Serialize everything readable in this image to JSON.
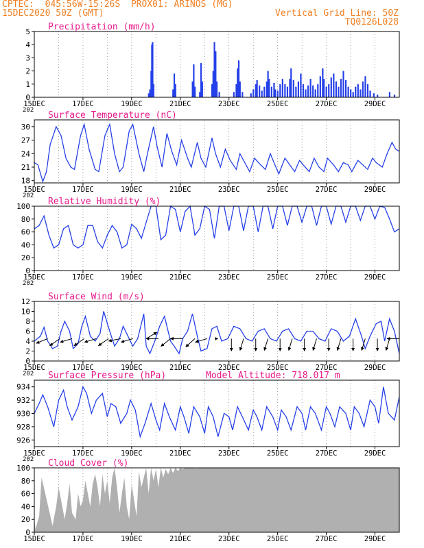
{
  "header": {
    "line1_left": "CPTEC:  045:56W-15:26S  PROX01: ARINOS (MG)",
    "line2_left": "15DEC2020 50Z (GMT)",
    "line2_right": "Vertical Grid Line: 50Z",
    "line3_right": "TQ0126L028",
    "model_altitude": "Model Altitude: 718.017 m"
  },
  "colors": {
    "header": "#f07f22",
    "panel_title": "#e8198b",
    "series": "#2540e8",
    "cloud": "#b0b0b0"
  },
  "x_ticks": [
    "15DEC",
    "17DEC",
    "19DEC",
    "21DEC",
    "23DEC",
    "25DEC",
    "27DEC",
    "29DEC"
  ],
  "x_cut_label": "202",
  "chart_data": [
    {
      "id": "precip",
      "type": "bar",
      "title": "Precipitation (mm/h)",
      "ylim": [
        0,
        5
      ],
      "yticks": [
        "0",
        "1",
        "2",
        "3",
        "4",
        "5"
      ],
      "grid": "vertical dashed",
      "xrange_days": [
        0,
        15
      ],
      "values": [
        [
          4.7,
          0.3
        ],
        [
          4.75,
          0.6
        ],
        [
          4.8,
          2.0
        ],
        [
          4.83,
          4.0
        ],
        [
          4.86,
          4.2
        ],
        [
          4.9,
          1.0
        ],
        [
          5.7,
          0.6
        ],
        [
          5.75,
          1.8
        ],
        [
          5.8,
          1.0
        ],
        [
          6.5,
          1.2
        ],
        [
          6.55,
          2.5
        ],
        [
          6.6,
          0.8
        ],
        [
          6.8,
          0.4
        ],
        [
          6.85,
          2.6
        ],
        [
          6.9,
          1.2
        ],
        [
          7.3,
          1.0
        ],
        [
          7.35,
          2.0
        ],
        [
          7.4,
          4.2
        ],
        [
          7.45,
          3.5
        ],
        [
          7.5,
          1.2
        ],
        [
          7.6,
          0.4
        ],
        [
          8.2,
          0.4
        ],
        [
          8.3,
          1.0
        ],
        [
          8.35,
          2.2
        ],
        [
          8.4,
          2.8
        ],
        [
          8.45,
          1.2
        ],
        [
          8.55,
          0.4
        ],
        [
          8.9,
          0.3
        ],
        [
          9.0,
          0.6
        ],
        [
          9.1,
          1.0
        ],
        [
          9.15,
          1.3
        ],
        [
          9.25,
          0.9
        ],
        [
          9.35,
          0.5
        ],
        [
          9.45,
          0.8
        ],
        [
          9.55,
          1.2
        ],
        [
          9.6,
          2.0
        ],
        [
          9.65,
          1.4
        ],
        [
          9.75,
          0.8
        ],
        [
          9.85,
          1.1
        ],
        [
          9.9,
          0.6
        ],
        [
          10.0,
          0.5
        ],
        [
          10.1,
          1.0
        ],
        [
          10.2,
          1.4
        ],
        [
          10.3,
          1.0
        ],
        [
          10.4,
          0.8
        ],
        [
          10.5,
          1.4
        ],
        [
          10.55,
          2.2
        ],
        [
          10.65,
          1.3
        ],
        [
          10.75,
          0.8
        ],
        [
          10.85,
          1.2
        ],
        [
          10.95,
          1.8
        ],
        [
          11.05,
          1.0
        ],
        [
          11.15,
          0.6
        ],
        [
          11.25,
          0.9
        ],
        [
          11.35,
          1.4
        ],
        [
          11.45,
          0.9
        ],
        [
          11.55,
          0.6
        ],
        [
          11.65,
          1.0
        ],
        [
          11.75,
          1.6
        ],
        [
          11.85,
          2.2
        ],
        [
          11.9,
          1.4
        ],
        [
          12.0,
          0.8
        ],
        [
          12.1,
          1.0
        ],
        [
          12.2,
          1.5
        ],
        [
          12.3,
          1.8
        ],
        [
          12.4,
          1.2
        ],
        [
          12.5,
          0.8
        ],
        [
          12.6,
          1.4
        ],
        [
          12.7,
          2.0
        ],
        [
          12.8,
          1.3
        ],
        [
          12.9,
          0.8
        ],
        [
          13.0,
          0.6
        ],
        [
          13.1,
          0.4
        ],
        [
          13.2,
          0.8
        ],
        [
          13.3,
          1.0
        ],
        [
          13.4,
          0.6
        ],
        [
          13.5,
          1.2
        ],
        [
          13.6,
          1.6
        ],
        [
          13.7,
          1.0
        ],
        [
          13.8,
          0.5
        ],
        [
          13.95,
          0.3
        ],
        [
          14.1,
          0.2
        ],
        [
          14.6,
          0.4
        ],
        [
          14.8,
          0.2
        ]
      ]
    },
    {
      "id": "temp",
      "type": "line",
      "title": "Surface Temperature (nC)",
      "ylim": [
        17.5,
        31.5
      ],
      "yticks": [
        "18",
        "21",
        "24",
        "27",
        "30"
      ],
      "grid": "vertical dashed",
      "xrange_days": [
        0,
        15
      ],
      "x": [
        0,
        0.15,
        0.35,
        0.5,
        0.65,
        0.9,
        1.1,
        1.3,
        1.5,
        1.65,
        1.9,
        2.05,
        2.25,
        2.5,
        2.65,
        2.9,
        3.1,
        3.3,
        3.5,
        3.65,
        3.9,
        4.05,
        4.3,
        4.5,
        4.65,
        4.9,
        5.05,
        5.25,
        5.45,
        5.65,
        5.85,
        6.05,
        6.3,
        6.45,
        6.7,
        6.85,
        7.05,
        7.3,
        7.45,
        7.65,
        7.85,
        8.05,
        8.3,
        8.45,
        8.65,
        8.85,
        9.05,
        9.3,
        9.5,
        9.7,
        9.85,
        10.05,
        10.3,
        10.5,
        10.7,
        10.9,
        11.05,
        11.3,
        11.5,
        11.7,
        11.9,
        12.05,
        12.3,
        12.5,
        12.7,
        12.9,
        13.05,
        13.3,
        13.5,
        13.7,
        13.9,
        14.05,
        14.3,
        14.5,
        14.7,
        14.85,
        15
      ],
      "y": [
        22,
        21.5,
        17.8,
        20,
        26,
        30,
        28,
        23,
        21,
        20.5,
        28,
        30.5,
        25,
        20.5,
        20,
        28,
        30.5,
        24,
        20,
        21,
        29,
        30.5,
        24,
        20,
        24,
        30,
        25.5,
        21,
        28.5,
        24.5,
        21.5,
        27,
        23,
        21,
        26.5,
        23,
        21,
        27.5,
        24,
        21,
        25,
        22.5,
        20.5,
        24,
        22,
        20,
        23,
        21.5,
        20.5,
        24,
        22,
        19.5,
        23,
        21.5,
        20,
        22.5,
        21.5,
        20,
        23,
        21,
        20,
        23,
        21.5,
        20,
        22,
        21.5,
        20,
        22.5,
        21.5,
        20.5,
        23,
        22,
        21,
        24,
        26.5,
        25,
        24.5
      ]
    },
    {
      "id": "rh",
      "type": "line",
      "title": "Relative Humidity (%)",
      "ylim": [
        0,
        100
      ],
      "yticks": [
        "0",
        "20",
        "40",
        "60",
        "80",
        "100"
      ],
      "grid": "vertical dashed",
      "xrange_days": [
        0,
        15
      ],
      "x": [
        0,
        0.2,
        0.4,
        0.6,
        0.8,
        1.0,
        1.2,
        1.4,
        1.6,
        1.8,
        2.0,
        2.2,
        2.4,
        2.6,
        2.8,
        3.0,
        3.2,
        3.4,
        3.6,
        3.8,
        4.0,
        4.2,
        4.4,
        4.6,
        4.8,
        5.0,
        5.2,
        5.4,
        5.6,
        5.8,
        6.0,
        6.2,
        6.4,
        6.6,
        6.8,
        7.0,
        7.2,
        7.4,
        7.6,
        7.8,
        8.0,
        8.2,
        8.4,
        8.6,
        8.8,
        9.0,
        9.2,
        9.4,
        9.6,
        9.8,
        10.0,
        10.2,
        10.4,
        10.6,
        10.8,
        11.0,
        11.2,
        11.4,
        11.6,
        11.8,
        12.0,
        12.2,
        12.4,
        12.6,
        12.8,
        13.0,
        13.2,
        13.4,
        13.6,
        13.8,
        14.0,
        14.2,
        14.4,
        14.6,
        14.8,
        15
      ],
      "y": [
        65,
        70,
        85,
        55,
        35,
        40,
        65,
        70,
        40,
        35,
        40,
        70,
        70,
        45,
        35,
        55,
        70,
        60,
        35,
        40,
        72,
        65,
        50,
        75,
        100,
        100,
        48,
        55,
        100,
        95,
        60,
        92,
        100,
        55,
        65,
        100,
        95,
        50,
        100,
        100,
        62,
        100,
        100,
        62,
        100,
        100,
        60,
        100,
        100,
        65,
        100,
        100,
        70,
        100,
        100,
        75,
        100,
        100,
        70,
        100,
        100,
        72,
        100,
        100,
        75,
        100,
        100,
        78,
        100,
        100,
        80,
        100,
        98,
        80,
        60,
        65
      ]
    },
    {
      "id": "wind",
      "type": "line",
      "title": "Surface Wind (m/s)",
      "ylim": [
        0,
        12
      ],
      "yticks": [
        "0",
        "2",
        "4",
        "6",
        "8",
        "10",
        "12"
      ],
      "grid": "vertical dashed",
      "xrange_days": [
        0,
        15
      ],
      "x": [
        0,
        0.25,
        0.4,
        0.55,
        0.75,
        0.95,
        1.1,
        1.25,
        1.45,
        1.6,
        1.8,
        1.95,
        2.1,
        2.3,
        2.5,
        2.7,
        2.85,
        3.1,
        3.3,
        3.5,
        3.65,
        3.85,
        4.05,
        4.25,
        4.5,
        4.6,
        4.75,
        4.95,
        5.15,
        5.35,
        5.6,
        5.75,
        5.95,
        6.1,
        6.3,
        6.5,
        6.7,
        6.85,
        7.1,
        7.3,
        7.5,
        7.7,
        7.95,
        8.2,
        8.45,
        8.7,
        8.95,
        9.2,
        9.45,
        9.7,
        9.95,
        10.2,
        10.45,
        10.7,
        10.95,
        11.2,
        11.45,
        11.7,
        11.95,
        12.2,
        12.45,
        12.7,
        12.95,
        13.2,
        13.45,
        13.6,
        13.8,
        14.05,
        14.25,
        14.4,
        14.6,
        14.8,
        15
      ],
      "y": [
        4,
        5,
        6.8,
        4,
        2.5,
        3,
        6,
        8,
        6,
        2.5,
        3.5,
        7,
        9,
        5,
        4,
        5.5,
        10,
        6,
        3,
        4.5,
        7,
        5,
        3,
        4.5,
        9.5,
        3,
        1.5,
        4,
        7,
        9,
        4,
        3,
        1.5,
        4.5,
        6,
        9.5,
        5,
        2,
        2.5,
        6.5,
        7,
        4,
        4.5,
        7,
        6.5,
        4.5,
        4,
        6,
        6.5,
        4.5,
        4,
        6,
        6.5,
        4.5,
        4,
        6,
        6,
        4.5,
        4,
        6.5,
        6,
        4,
        5,
        8.5,
        5,
        2.5,
        5,
        7.5,
        8,
        4,
        8.5,
        6,
        1.5
      ]
    },
    {
      "id": "pressure",
      "type": "line",
      "title": "Surface Pressure (hPa)",
      "ylim": [
        925,
        935
      ],
      "yticks": [
        "926",
        "928",
        "930",
        "932",
        "934"
      ],
      "grid": "vertical dashed",
      "xrange_days": [
        0,
        15
      ],
      "x": [
        0,
        0.2,
        0.35,
        0.55,
        0.8,
        1.0,
        1.2,
        1.35,
        1.55,
        1.8,
        2.0,
        2.15,
        2.35,
        2.55,
        2.8,
        3.0,
        3.15,
        3.35,
        3.55,
        3.8,
        3.95,
        4.15,
        4.35,
        4.55,
        4.8,
        5.0,
        5.15,
        5.35,
        5.55,
        5.8,
        6.0,
        6.15,
        6.35,
        6.55,
        6.8,
        7.0,
        7.15,
        7.35,
        7.55,
        7.8,
        8.0,
        8.15,
        8.35,
        8.55,
        8.8,
        9.0,
        9.15,
        9.35,
        9.55,
        9.8,
        10.0,
        10.15,
        10.35,
        10.55,
        10.8,
        11.0,
        11.15,
        11.35,
        11.55,
        11.8,
        12.0,
        12.15,
        12.35,
        12.55,
        12.8,
        13.0,
        13.15,
        13.35,
        13.55,
        13.8,
        14.0,
        14.15,
        14.35,
        14.55,
        14.8,
        15
      ],
      "y": [
        930,
        931.5,
        932.8,
        931,
        928,
        932,
        933.5,
        931,
        929,
        931,
        934,
        933,
        930,
        932,
        933,
        929.5,
        931.5,
        931,
        928.5,
        930,
        932,
        930.5,
        926.5,
        928.5,
        931.5,
        929,
        927.5,
        931.5,
        929.5,
        927.5,
        931,
        929.5,
        927,
        931,
        929.5,
        927,
        931,
        929.5,
        926.5,
        930,
        929.5,
        927.5,
        931,
        929.5,
        927.5,
        930.5,
        929.5,
        927.5,
        931,
        929.5,
        927.5,
        930.5,
        929.5,
        927.5,
        931,
        930,
        927.5,
        931,
        930,
        927.5,
        931,
        930,
        928,
        931,
        930,
        927.5,
        931,
        930,
        928,
        932,
        931,
        928.5,
        934,
        930,
        929,
        932.5
      ]
    },
    {
      "id": "cloud",
      "type": "area",
      "title": "Cloud Cover (%)",
      "ylim": [
        0,
        100
      ],
      "yticks": [
        "0",
        "20",
        "40",
        "60",
        "80",
        "100"
      ],
      "grid": "vertical dashed",
      "xrange_days": [
        0,
        15
      ],
      "x": [
        0,
        0.05,
        0.2,
        0.3,
        0.45,
        0.6,
        0.75,
        0.9,
        1.0,
        1.1,
        1.25,
        1.35,
        1.45,
        1.55,
        1.7,
        1.8,
        1.9,
        2.0,
        2.1,
        2.2,
        2.3,
        2.4,
        2.5,
        2.6,
        2.7,
        2.8,
        2.9,
        3.0,
        3.1,
        3.2,
        3.3,
        3.4,
        3.5,
        3.6,
        3.7,
        3.8,
        3.9,
        4.0,
        4.1,
        4.2,
        4.3,
        4.4,
        4.5,
        4.6,
        4.7,
        4.8,
        4.9,
        5.0,
        5.1,
        5.2,
        5.3,
        5.4,
        5.5,
        5.6,
        5.7,
        5.8,
        5.9,
        6.0,
        6.1,
        6.2,
        6.4,
        6.6,
        6.8,
        7.0,
        7.2,
        7.4,
        7.6,
        7.8,
        8.0,
        8.2,
        8.4,
        8.6,
        8.8,
        9.0,
        9.5,
        10.0,
        10.5,
        11.0,
        11.5,
        12.0,
        12.5,
        13.0,
        13.5,
        14.0,
        14.5,
        14.8,
        15
      ],
      "y": [
        20,
        5,
        25,
        85,
        60,
        35,
        10,
        40,
        70,
        50,
        20,
        45,
        75,
        30,
        20,
        60,
        40,
        50,
        80,
        60,
        40,
        75,
        90,
        70,
        40,
        90,
        60,
        80,
        45,
        85,
        100,
        70,
        30,
        60,
        85,
        40,
        20,
        75,
        50,
        25,
        95,
        70,
        85,
        100,
        60,
        100,
        80,
        98,
        70,
        100,
        85,
        98,
        90,
        100,
        92,
        100,
        95,
        100,
        98,
        100,
        100,
        99,
        100,
        100,
        100,
        100,
        100,
        100,
        100,
        100,
        100,
        100,
        100,
        100,
        100,
        100,
        100,
        100,
        100,
        100,
        100,
        100,
        100,
        100,
        100,
        100,
        100
      ]
    },
    {
      "id": "wind_vectors",
      "type": "scatter",
      "x": [
        0.55,
        1.05,
        1.55,
        2.05,
        2.55,
        3.05,
        3.55,
        4.05,
        4.6,
        5.1,
        5.6,
        6.1,
        6.6,
        7.1,
        7.55,
        8.1,
        8.6,
        9.1,
        9.6,
        10.1,
        10.6,
        11.1,
        11.6,
        12.1,
        12.6,
        13.1,
        13.6,
        14.1,
        14.6,
        15.0
      ],
      "u": [
        -1,
        -1,
        -1,
        -1,
        -1,
        -1,
        -1,
        -1,
        1,
        -1,
        -1,
        -1,
        -1,
        -1,
        0,
        0,
        -0.3,
        0,
        -0.3,
        0,
        -0.3,
        0,
        -0.3,
        0,
        -0.3,
        0,
        -0.3,
        0,
        -0.3,
        -1
      ],
      "v": [
        -0.4,
        -0.7,
        -0.3,
        -0.7,
        -0.3,
        -0.7,
        -0.2,
        -0.3,
        0.6,
        0,
        -0.8,
        0,
        -0.9,
        -0.3,
        0,
        -1,
        -1,
        -1,
        -1,
        -1,
        -1,
        -1,
        -1,
        -1,
        -1,
        -1,
        -1,
        -1,
        -1,
        0
      ]
    }
  ]
}
